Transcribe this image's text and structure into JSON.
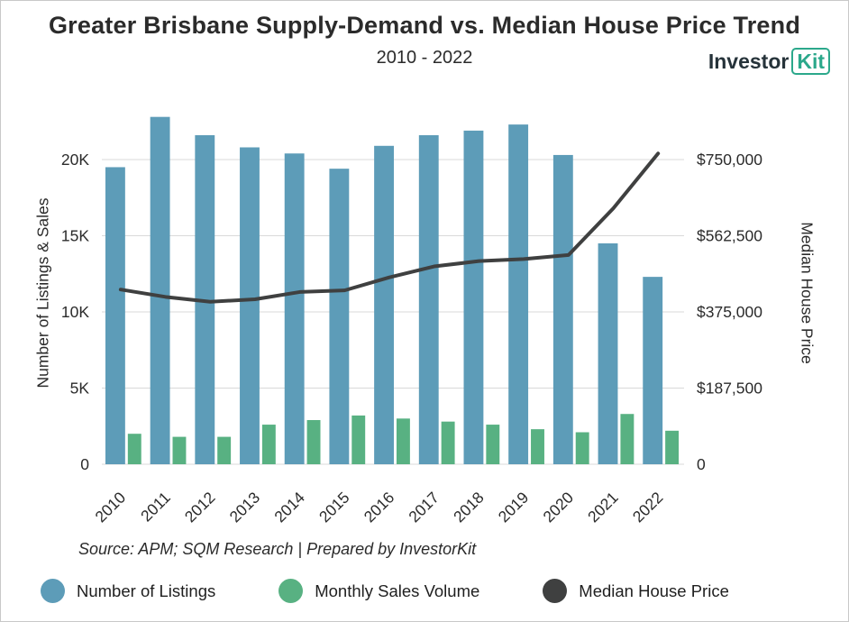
{
  "title": "Greater Brisbane Supply-Demand vs. Median House Price Trend",
  "subtitle": "2010 - 2022",
  "logo": {
    "part1": "Investor",
    "part2": "Kit",
    "accent_color": "#2ba88b"
  },
  "source": "Source: APM; SQM Research | Prepared by InvestorKit",
  "axes": {
    "left_label": "Number of Listings & Sales",
    "right_label": "Median House Price"
  },
  "legend": [
    {
      "label": "Number of Listings",
      "color": "#5d9cb8"
    },
    {
      "label": "Monthly Sales Volume",
      "color": "#58b182"
    },
    {
      "label": "Median House Price",
      "color": "#3f4040"
    }
  ],
  "chart_data": {
    "type": "bar",
    "subtype": "grouped-bars-with-line-overlay",
    "title": "Greater Brisbane Supply-Demand vs. Median House Price Trend",
    "subtitle": "2010 - 2022",
    "categories": [
      "2010",
      "2011",
      "2012",
      "2013",
      "2014",
      "2015",
      "2016",
      "2017",
      "2018",
      "2019",
      "2020",
      "2021",
      "2022"
    ],
    "series": [
      {
        "name": "Number of Listings",
        "type": "bar",
        "axis": "left",
        "color": "#5d9cb8",
        "values": [
          19500,
          22800,
          21600,
          20800,
          20400,
          19400,
          20900,
          21600,
          21900,
          22300,
          20300,
          14500,
          12300
        ]
      },
      {
        "name": "Monthly Sales Volume",
        "type": "bar",
        "axis": "left",
        "color": "#58b182",
        "values": [
          2000,
          1800,
          1800,
          2600,
          2900,
          3200,
          3000,
          2800,
          2600,
          2300,
          2100,
          3300,
          2200
        ]
      },
      {
        "name": "Median House Price",
        "type": "line",
        "axis": "right",
        "color": "#3f4040",
        "values": [
          430000,
          412000,
          400000,
          406000,
          424000,
          428000,
          460000,
          487000,
          500000,
          505000,
          515000,
          630000,
          765000
        ]
      }
    ],
    "left_axis": {
      "label": "Number of Listings & Sales",
      "ticks": [
        0,
        5000,
        10000,
        15000,
        20000
      ],
      "tick_labels": [
        "0",
        "5K",
        "10K",
        "15K",
        "20K"
      ],
      "range": [
        0,
        23100
      ]
    },
    "right_axis": {
      "label": "Median House Price",
      "ticks": [
        0,
        187500,
        375000,
        562500,
        750000
      ],
      "tick_labels": [
        "0",
        "$187,500",
        "$375,000",
        "$562,500",
        "$750,000"
      ],
      "range": [
        0,
        866250
      ]
    },
    "grid": true,
    "legend_position": "bottom",
    "xlabel": "",
    "ylabel_left": "Number of Listings & Sales",
    "ylabel_right": "Median House Price"
  }
}
